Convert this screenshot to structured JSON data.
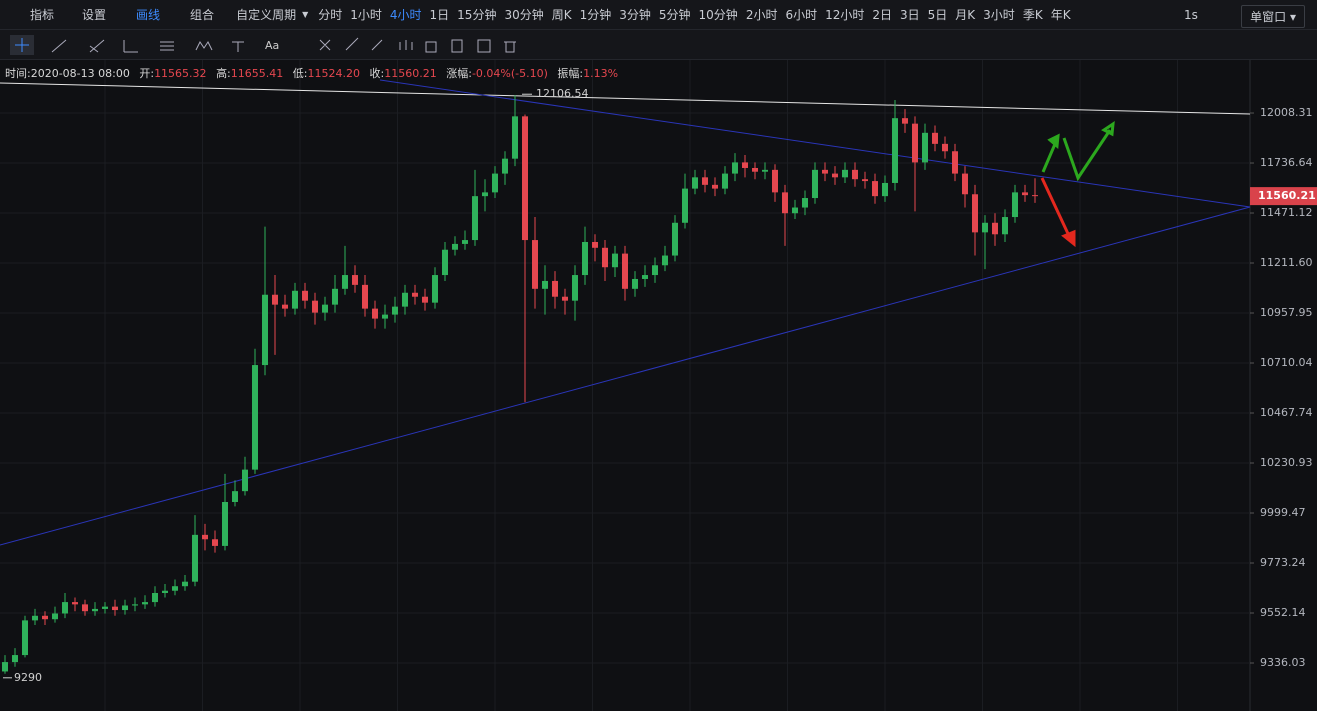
{
  "toolbar": {
    "items": [
      "指标",
      "设置",
      "画线",
      "组合"
    ],
    "period_menu": "自定义周期",
    "periods": [
      "分时",
      "1小时",
      "4小时",
      "1日",
      "15分钟",
      "30分钟",
      "周K",
      "1分钟",
      "3分钟",
      "5分钟",
      "10分钟",
      "2小时",
      "6小时",
      "12小时",
      "2日",
      "3日",
      "5日",
      "月K",
      "3小时",
      "季K",
      "年K"
    ],
    "refresh": "1s",
    "window_menu": "单窗口"
  },
  "drawing_tools": {
    "text_tool": "Aa"
  },
  "info_bar": {
    "time_label": "时间:",
    "time": "2020-08-13 08:00",
    "open_label": "开:",
    "open": "11565.32",
    "high_label": "高:",
    "high": "11655.41",
    "low_label": "低:",
    "low": "11524.20",
    "close_label": "收:",
    "close": "11560.21",
    "change_label": "涨幅:",
    "change": "-0.04%(-5.10)",
    "amplitude_label": "振幅:",
    "amplitude": "1.13%"
  },
  "chart_data": {
    "type": "candlestick",
    "log_scale": true,
    "grid": true,
    "up_color": "#2fb25b",
    "down_color": "#e5474f",
    "ylim": [
      9158.3,
      12292
    ],
    "yticks": [
      12008.31,
      11736.64,
      11471.12,
      {
        "value": 11211.6,
        "label": "11211.60"
      },
      10957.95,
      10710.04,
      10467.74,
      10230.93,
      9999.47,
      9773.24,
      9552.14,
      9336.03
    ],
    "open": [
      9300,
      9340,
      9370,
      9520,
      9540,
      9525,
      9550,
      9600,
      9590,
      9560,
      9570,
      9580,
      9565,
      9585,
      9590,
      9600,
      9640,
      9650,
      9670,
      9690,
      9900,
      9880,
      9850,
      10050,
      10100,
      10200,
      10700,
      11050,
      11000,
      10980,
      11070,
      11020,
      10960,
      11000,
      11080,
      11150,
      11100,
      10980,
      10930,
      10950,
      10990,
      11060,
      11040,
      11010,
      11150,
      11280,
      11310,
      11330,
      11560,
      11580,
      11680,
      11760,
      11990,
      11330,
      11080,
      11120,
      11040,
      11020,
      11150,
      11320,
      11290,
      11190,
      11260,
      11080,
      11130,
      11150,
      11200,
      11250,
      11420,
      11600,
      11660,
      11620,
      11600,
      11680,
      11740,
      11710,
      11690,
      11700,
      11580,
      11470,
      11500,
      11550,
      11700,
      11680,
      11660,
      11700,
      11650,
      11640,
      11560,
      11630,
      11980,
      11950,
      11740,
      11900,
      11840,
      11800,
      11680,
      11570,
      11370,
      11420,
      11360,
      11450,
      11580,
      11565.32
    ],
    "high": [
      9370,
      9400,
      9540,
      9570,
      9560,
      9580,
      9640,
      9620,
      9610,
      9600,
      9600,
      9610,
      9610,
      9620,
      9630,
      9670,
      9680,
      9700,
      9720,
      9990,
      9950,
      9920,
      10180,
      10150,
      10260,
      10780,
      11400,
      11150,
      11050,
      11110,
      11110,
      11060,
      11040,
      11150,
      11300,
      11200,
      11150,
      11020,
      11000,
      11040,
      11100,
      11100,
      11080,
      11190,
      11320,
      11350,
      11380,
      11700,
      11650,
      11720,
      11800,
      12106.54,
      12000,
      11450,
      11200,
      11170,
      11080,
      11200,
      11400,
      11360,
      11330,
      11300,
      11300,
      11170,
      11200,
      11240,
      11300,
      11460,
      11680,
      11700,
      11700,
      11660,
      11720,
      11790,
      11780,
      11740,
      11740,
      11730,
      11620,
      11540,
      11590,
      11740,
      11740,
      11720,
      11740,
      11740,
      11690,
      11680,
      11670,
      12080,
      12030,
      11990,
      11950,
      11940,
      11880,
      11840,
      11720,
      11620,
      11460,
      11470,
      11490,
      11620,
      11620,
      11655.41
    ],
    "low": [
      9290,
      9320,
      9360,
      9500,
      9500,
      9510,
      9530,
      9560,
      9540,
      9540,
      9550,
      9540,
      9545,
      9560,
      9570,
      9580,
      9620,
      9630,
      9650,
      9670,
      9830,
      9820,
      9830,
      10030,
      10080,
      10180,
      10650,
      10750,
      10940,
      10950,
      10980,
      10900,
      10920,
      10960,
      11050,
      11060,
      10940,
      10880,
      10880,
      10910,
      10950,
      11000,
      10970,
      10980,
      11120,
      11250,
      11280,
      11300,
      11480,
      11550,
      11620,
      11720,
      10520,
      10980,
      10950,
      10980,
      10950,
      10920,
      11100,
      11220,
      11120,
      11140,
      11020,
      11040,
      11090,
      11110,
      11170,
      11220,
      11390,
      11570,
      11580,
      11560,
      11570,
      11640,
      11660,
      11650,
      11650,
      11530,
      11300,
      11440,
      11460,
      11520,
      11640,
      11620,
      11630,
      11610,
      11600,
      11520,
      11530,
      11590,
      11900,
      11480,
      11700,
      11800,
      11760,
      11640,
      11500,
      11250,
      11180,
      11300,
      11320,
      11420,
      11530,
      11524.2
    ],
    "close": [
      9340,
      9370,
      9520,
      9540,
      9525,
      9550,
      9600,
      9590,
      9560,
      9570,
      9580,
      9565,
      9585,
      9590,
      9600,
      9640,
      9650,
      9670,
      9690,
      9900,
      9880,
      9850,
      10050,
      10100,
      10200,
      10700,
      11050,
      11000,
      10980,
      11070,
      11020,
      10960,
      11000,
      11080,
      11150,
      11100,
      10980,
      10930,
      10950,
      10990,
      11060,
      11040,
      11010,
      11150,
      11280,
      11310,
      11330,
      11560,
      11580,
      11680,
      11760,
      11990,
      11330,
      11080,
      11120,
      11040,
      11020,
      11150,
      11320,
      11290,
      11190,
      11260,
      11080,
      11130,
      11150,
      11200,
      11250,
      11420,
      11600,
      11660,
      11620,
      11600,
      11680,
      11740,
      11710,
      11690,
      11700,
      11580,
      11470,
      11500,
      11550,
      11700,
      11680,
      11660,
      11700,
      11650,
      11640,
      11560,
      11630,
      11980,
      11950,
      11740,
      11900,
      11840,
      11800,
      11680,
      11570,
      11370,
      11420,
      11360,
      11450,
      11580,
      11565.32,
      11560.21
    ],
    "last_price_label": "11560.21",
    "peak_label": "12106.54",
    "low_label": "9290"
  }
}
